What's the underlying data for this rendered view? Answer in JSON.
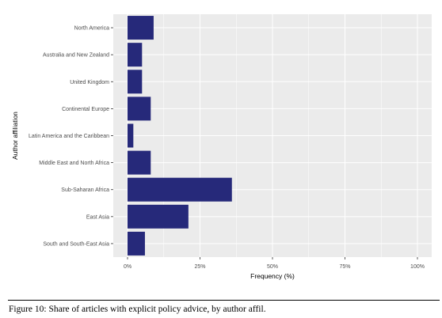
{
  "chart_data": {
    "type": "bar",
    "orientation": "horizontal",
    "categories": [
      "North America",
      "Australia and New Zealand",
      "United Kingdom",
      "Continental Europe",
      "Latin America and the Caribbean",
      "Middle East and North Africa",
      "Sub-Saharan Africa",
      "East Asia",
      "South and South-East Asia"
    ],
    "values": [
      9,
      5,
      5,
      8,
      2,
      8,
      36,
      21,
      6
    ],
    "xlabel": "Frequency (%)",
    "ylabel": "Author affiliation",
    "xlim": [
      0,
      100
    ],
    "xticks": [
      "0%",
      "25%",
      "50%",
      "75%",
      "100%"
    ],
    "grid": true,
    "colors": {
      "bar": "#26297a",
      "panel": "#ebebeb",
      "grid": "#ffffff"
    }
  },
  "caption": "Figure 10: Share of articles with explicit policy advice, by author affil."
}
